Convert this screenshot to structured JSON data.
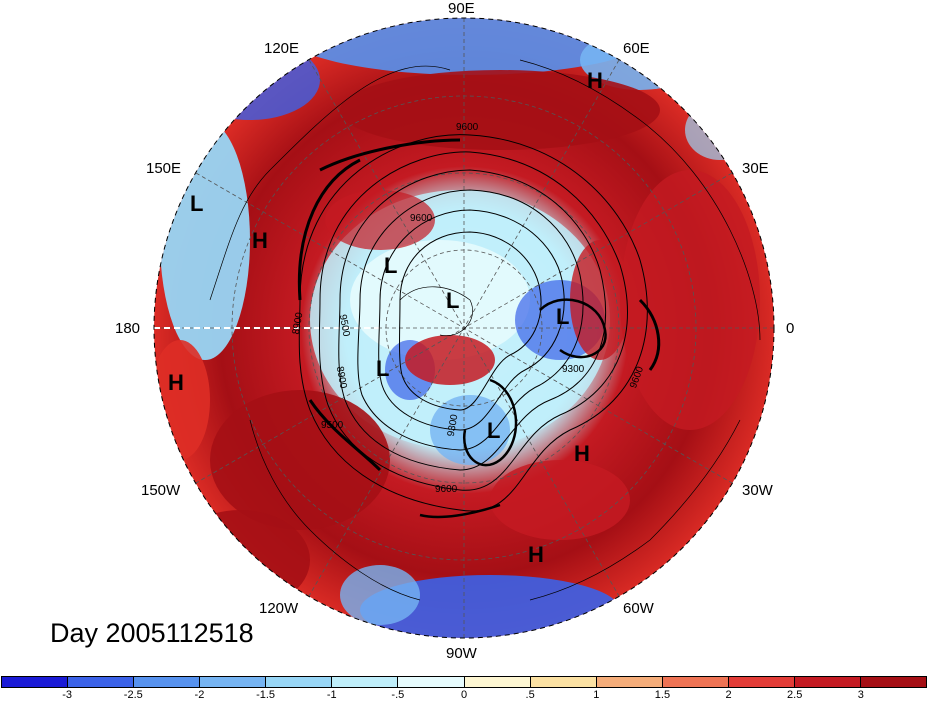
{
  "map": {
    "date_label": "Day 2005112518",
    "longitude_labels": {
      "n": "90E",
      "nne": "60E",
      "nnw": "120E",
      "ene": "30E",
      "wnw": "150E",
      "e": "0",
      "w": "180",
      "ese": "30W",
      "wsw": "150W",
      "sse": "60W",
      "ssw": "120W",
      "s": "90W"
    },
    "pressure_systems": [
      {
        "label": "H",
        "name": "high-1"
      },
      {
        "label": "L",
        "name": "low-1"
      },
      {
        "label": "H",
        "name": "high-2"
      },
      {
        "label": "L",
        "name": "low-2"
      },
      {
        "label": "L",
        "name": "low-3"
      },
      {
        "label": "L",
        "name": "low-4"
      },
      {
        "label": "H",
        "name": "high-3"
      },
      {
        "label": "L",
        "name": "low-5"
      },
      {
        "label": "L",
        "name": "low-6"
      },
      {
        "label": "H",
        "name": "high-4"
      },
      {
        "label": "H",
        "name": "high-5"
      }
    ],
    "contour_labels": [
      "9600",
      "9600",
      "9600",
      "9300",
      "9500",
      "9600",
      "8900",
      "9500",
      "8900",
      "9300"
    ],
    "colors": {
      "strong_positive": "#a50f15",
      "positive": "#de2d26",
      "weak_positive": "#fcae91",
      "neutral": "#f7f7f7",
      "weak_negative": "#c6f1fc",
      "negative": "#6ab5f0",
      "strong_negative": "#1a3fd6"
    }
  },
  "colorbar": {
    "ticks": [
      "-3",
      "-2.5",
      "-2",
      "-1.5",
      "-1",
      "-.5",
      "0",
      ".5",
      "1",
      "1.5",
      "2",
      "2.5",
      "3"
    ],
    "colors": [
      "#1a1ad6",
      "#3b62e8",
      "#5792ee",
      "#76b4f2",
      "#98d6f6",
      "#bfeefa",
      "#e6fbfd",
      "#fdf6d2",
      "#fbe1a3",
      "#f5ad7a",
      "#ee7354",
      "#e23c37",
      "#c41a22",
      "#a50f15"
    ]
  }
}
